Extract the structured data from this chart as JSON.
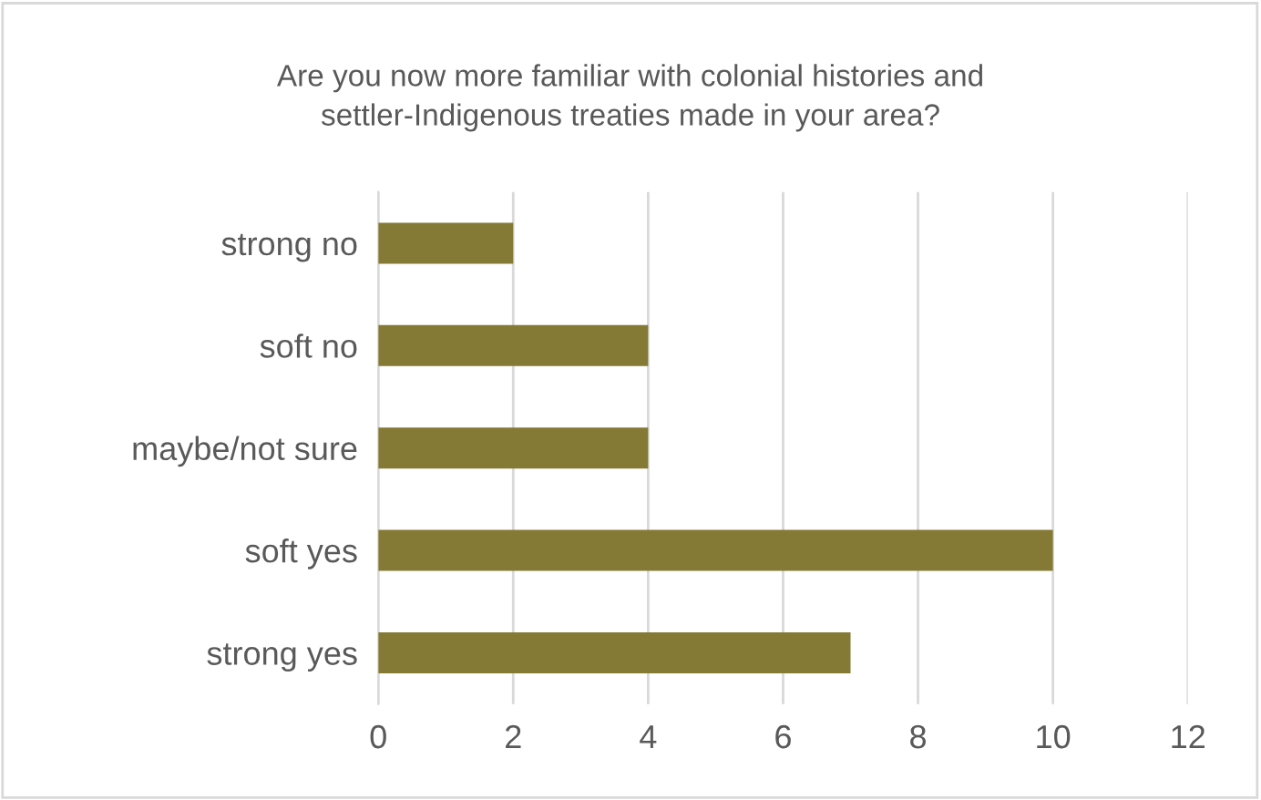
{
  "chart_data": {
    "type": "bar",
    "orientation": "horizontal",
    "title": "Are you now more familiar with colonial histories and\nsettler-Indigenous treaties made in your area?",
    "categories": [
      "strong no",
      "soft no",
      "maybe/not sure",
      "soft yes",
      "strong yes"
    ],
    "values": [
      2,
      4,
      4,
      10,
      7
    ],
    "color": "#857a35",
    "xlim": [
      0,
      12
    ],
    "xticks": [
      0,
      2,
      4,
      6,
      8,
      10,
      12
    ],
    "grid": "x",
    "legend": false
  }
}
